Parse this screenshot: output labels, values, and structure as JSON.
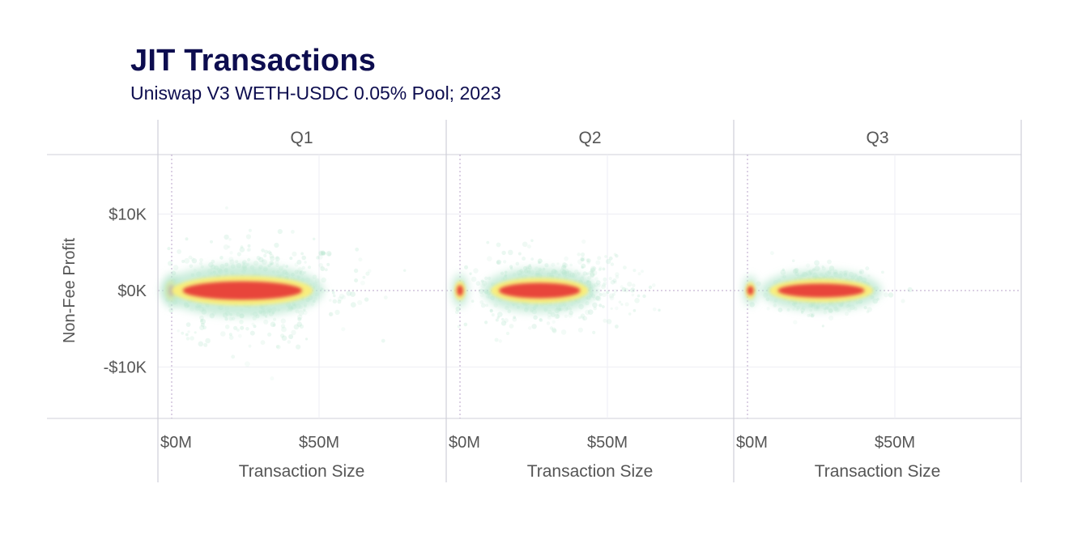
{
  "chart_data": {
    "type": "scatter",
    "title": "JIT Transactions",
    "subtitle": "Uniswap V3 WETH-USDC 0.05% Pool; 2023",
    "xlabel": "Transaction Size",
    "ylabel": "Non-Fee Profit",
    "xlim": [
      -3,
      95
    ],
    "ylim": [
      -17,
      17
    ],
    "xticks": [
      {
        "value": 0,
        "label": "$0M"
      },
      {
        "value": 50,
        "label": "$50M"
      }
    ],
    "yticks": [
      {
        "value": 10,
        "label": "$10K"
      },
      {
        "value": 0,
        "label": "$0K"
      },
      {
        "value": -10,
        "label": "-$10K"
      }
    ],
    "units": {
      "x": "USD millions",
      "y": "USD thousands"
    },
    "panels": [
      {
        "label": "Q1",
        "clusters": [
          {
            "x_center": 0,
            "x_half_width": 1.2,
            "y_spread": 0.7,
            "density": "high"
          },
          {
            "x_center": 24,
            "x_half_width": 22,
            "y_spread": 1.2,
            "density": "high"
          },
          {
            "x_center": 26,
            "x_half_width": 40,
            "y_spread": 6,
            "density": "low"
          }
        ]
      },
      {
        "label": "Q2",
        "clusters": [
          {
            "x_center": 0,
            "x_half_width": 1.0,
            "y_spread": 0.7,
            "density": "high"
          },
          {
            "x_center": 27,
            "x_half_width": 15,
            "y_spread": 1.0,
            "density": "high"
          },
          {
            "x_center": 30,
            "x_half_width": 33,
            "y_spread": 4,
            "density": "low"
          }
        ]
      },
      {
        "label": "Q3",
        "clusters": [
          {
            "x_center": 1,
            "x_half_width": 0.8,
            "y_spread": 0.6,
            "density": "high"
          },
          {
            "x_center": 25,
            "x_half_width": 16,
            "y_spread": 0.9,
            "density": "high"
          },
          {
            "x_center": 25,
            "x_half_width": 20,
            "y_spread": 2.5,
            "density": "low"
          }
        ]
      }
    ],
    "colors": {
      "density_low": "#b8e6cf",
      "density_mid": "#fbef78",
      "density_high": "#e8443a",
      "grid": "#eeeef4",
      "reference_line": "#b9a3c9",
      "frame": "#cfcfd8",
      "title": "#0d0d4f"
    }
  }
}
